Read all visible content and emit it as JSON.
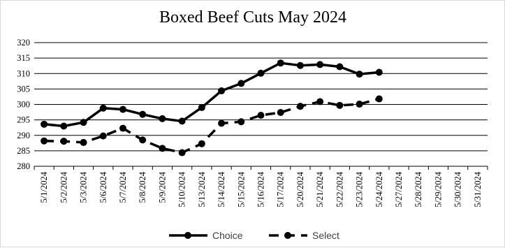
{
  "chart_data": {
    "type": "line",
    "title": "Boxed Beef Cuts May 2024",
    "xlabel": "",
    "ylabel": "",
    "ylim": [
      280,
      320
    ],
    "yticks": [
      280,
      285,
      290,
      295,
      300,
      305,
      310,
      315,
      320
    ],
    "grid": true,
    "legend_position": "bottom",
    "categories": [
      "5/1/2024",
      "5/2/2024",
      "5/3/2024",
      "5/6/2024",
      "5/7/2024",
      "5/8/2024",
      "5/9/2024",
      "5/10/2024",
      "5/13/2024",
      "5/14/2024",
      "5/15/2024",
      "5/16/2024",
      "5/17/2024",
      "5/20/2024",
      "5/21/2024",
      "5/22/2024",
      "5/23/2024",
      "5/24/2024",
      "5/27/2024",
      "5/28/2024",
      "5/29/2024",
      "5/30/2024",
      "5/31/2024"
    ],
    "series": [
      {
        "name": "Choice",
        "style": "solid",
        "color": "#000000",
        "values": [
          293.6,
          293.0,
          294.2,
          298.8,
          298.4,
          296.8,
          295.4,
          294.6,
          299.0,
          304.4,
          306.8,
          310.1,
          313.4,
          312.6,
          312.9,
          312.2,
          309.8,
          310.4,
          null,
          null,
          null,
          null,
          null
        ]
      },
      {
        "name": "Select",
        "style": "dashed",
        "color": "#000000",
        "values": [
          288.2,
          288.1,
          287.7,
          289.8,
          292.3,
          288.5,
          285.8,
          284.4,
          287.3,
          293.9,
          294.4,
          296.5,
          297.4,
          299.4,
          300.9,
          299.7,
          300.1,
          301.8,
          null,
          null,
          null,
          null,
          null
        ]
      }
    ]
  }
}
